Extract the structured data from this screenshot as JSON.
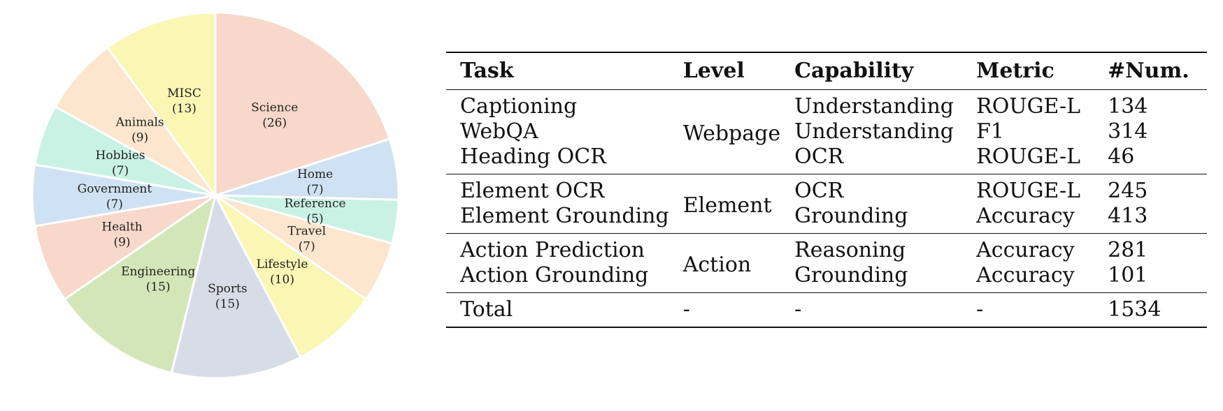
{
  "chart_data": {
    "type": "pie",
    "slices": [
      {
        "label": "Science",
        "value": 26,
        "count_text": "(26)",
        "color": "#f7d8cb"
      },
      {
        "label": "Home",
        "value": 7,
        "count_text": "(7)",
        "color": "#cfe2f3"
      },
      {
        "label": "Reference",
        "value": 5,
        "count_text": "(5)",
        "color": "#c9f2e4"
      },
      {
        "label": "Travel",
        "value": 7,
        "count_text": "(7)",
        "color": "#fce6cd"
      },
      {
        "label": "Lifestyle",
        "value": 10,
        "count_text": "(10)",
        "color": "#faf6b4"
      },
      {
        "label": "Sports",
        "value": 15,
        "count_text": "(15)",
        "color": "#d7dde6"
      },
      {
        "label": "Engineering",
        "value": 15,
        "count_text": "(15)",
        "color": "#d3e6b8"
      },
      {
        "label": "Health",
        "value": 9,
        "count_text": "(9)",
        "color": "#f7d8cb"
      },
      {
        "label": "Government",
        "value": 7,
        "count_text": "(7)",
        "color": "#cfe2f3"
      },
      {
        "label": "Hobbies",
        "value": 7,
        "count_text": "(7)",
        "color": "#c9f2e4"
      },
      {
        "label": "Animals",
        "value": 9,
        "count_text": "(9)",
        "color": "#fce6cd"
      },
      {
        "label": "MISC",
        "value": 13,
        "count_text": "(13)",
        "color": "#faf6b4"
      }
    ]
  },
  "table": {
    "headers": [
      "Task",
      "Level",
      "Capability",
      "Metric",
      "#Num."
    ],
    "groups": [
      {
        "level": "Webpage",
        "rows": [
          {
            "task": "Captioning",
            "capability": "Understanding",
            "metric": "ROUGE-L",
            "num": "134"
          },
          {
            "task": "WebQA",
            "capability": "Understanding",
            "metric": "F1",
            "num": "314"
          },
          {
            "task": "Heading OCR",
            "capability": "OCR",
            "metric": "ROUGE-L",
            "num": "46"
          }
        ]
      },
      {
        "level": "Element",
        "rows": [
          {
            "task": "Element OCR",
            "capability": "OCR",
            "metric": "ROUGE-L",
            "num": "245"
          },
          {
            "task": "Element Grounding",
            "capability": "Grounding",
            "metric": "Accuracy",
            "num": "413"
          }
        ]
      },
      {
        "level": "Action",
        "rows": [
          {
            "task": "Action Prediction",
            "capability": "Reasoning",
            "metric": "Accuracy",
            "num": "281"
          },
          {
            "task": "Action Grounding",
            "capability": "Grounding",
            "metric": "Accuracy",
            "num": "101"
          }
        ]
      }
    ],
    "total": {
      "task": "Total",
      "level": "-",
      "capability": "-",
      "metric": "-",
      "num": "1534"
    }
  }
}
